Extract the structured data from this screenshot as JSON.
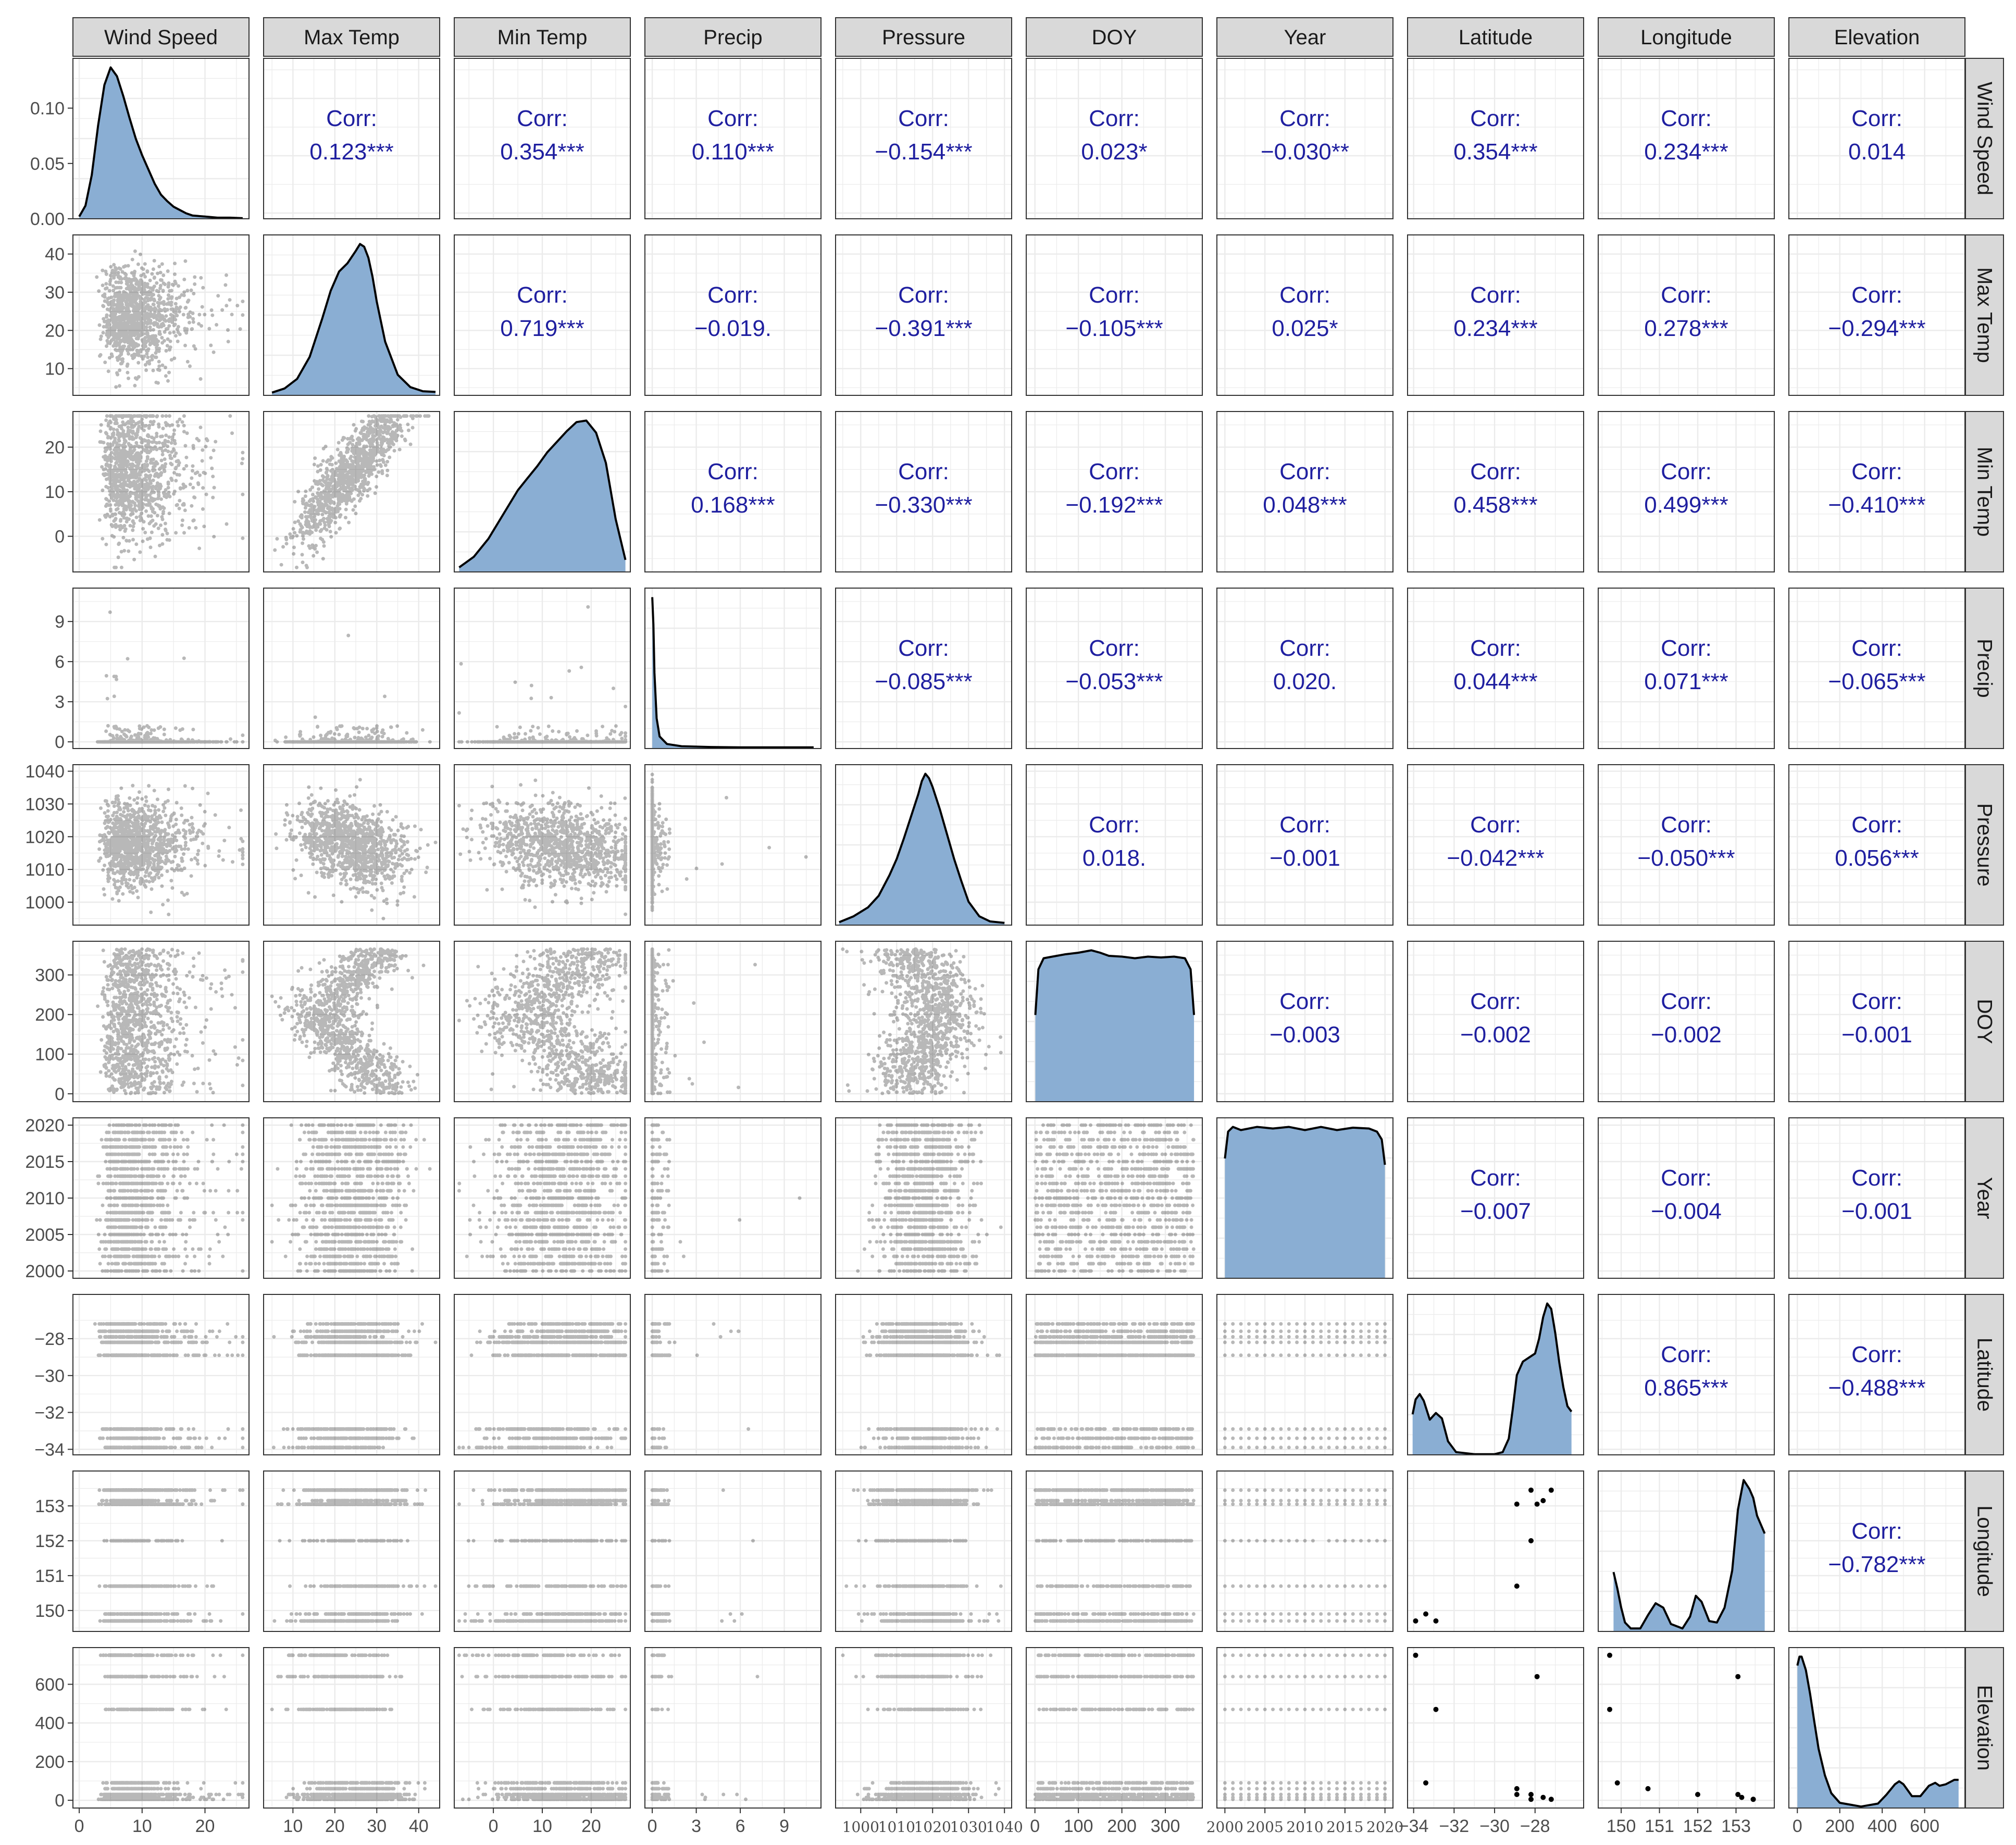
{
  "chart_data": {
    "type": "scatter",
    "layout": "pairs-matrix",
    "variables": [
      "Wind Speed",
      "Max Temp",
      "Min Temp",
      "Precip",
      "Pressure",
      "DOY",
      "Year",
      "Latitude",
      "Longitude",
      "Elevation"
    ],
    "grid": true,
    "colors": {
      "density_fill": "#8aaed3",
      "density_line": "#000000",
      "points": "#000000",
      "correlation_text": "#1f1fa0",
      "strip_fill": "#d9d9d9",
      "gridline": "#ebebeb"
    },
    "axes": [
      {
        "name": "Wind Speed",
        "range": [
          -1,
          27
        ],
        "ticks": [
          "0",
          "10",
          "20"
        ],
        "tick_values": [
          0,
          10,
          20
        ],
        "density_range": [
          0,
          0.145
        ],
        "density_ticks": [
          "0.00",
          "0.05",
          "0.10"
        ],
        "density_tick_values": [
          0,
          0.05,
          0.1
        ]
      },
      {
        "name": "Max Temp",
        "range": [
          3,
          45
        ],
        "ticks": [
          "10",
          "20",
          "30",
          "40"
        ],
        "tick_values": [
          10,
          20,
          30,
          40
        ]
      },
      {
        "name": "Min Temp",
        "range": [
          -8,
          28
        ],
        "ticks": [
          "0",
          "10",
          "20"
        ],
        "tick_values": [
          0,
          10,
          20
        ]
      },
      {
        "name": "Precip",
        "range": [
          -0.5,
          11.5
        ],
        "ticks": [
          "0",
          "3",
          "6",
          "9"
        ],
        "tick_values": [
          0,
          3,
          6,
          9
        ]
      },
      {
        "name": "Pressure",
        "range": [
          993,
          1042
        ],
        "ticks": [
          "1000",
          "1010",
          "1020",
          "1030",
          "1040"
        ],
        "tick_values": [
          1000,
          1010,
          1020,
          1030,
          1040
        ]
      },
      {
        "name": "DOY",
        "range": [
          -20,
          385
        ],
        "ticks": [
          "0",
          "100",
          "200",
          "300"
        ],
        "tick_values": [
          0,
          100,
          200,
          300
        ]
      },
      {
        "name": "Year",
        "range": [
          1999,
          2021
        ],
        "ticks": [
          "2000",
          "2005",
          "2010",
          "2015",
          "2020"
        ],
        "tick_values": [
          2000,
          2005,
          2010,
          2015,
          2020
        ]
      },
      {
        "name": "Latitude",
        "range": [
          -34.3,
          -25.6
        ],
        "ticks": [
          "-34",
          "-32",
          "-30",
          "-28"
        ],
        "tick_values": [
          -34,
          -32,
          -30,
          -28
        ]
      },
      {
        "name": "Longitude",
        "range": [
          149.4,
          154.0
        ],
        "ticks": [
          "150",
          "151",
          "152",
          "153"
        ],
        "tick_values": [
          150,
          151,
          152,
          153
        ]
      },
      {
        "name": "Elevation",
        "range": [
          -40,
          790
        ],
        "ticks": [
          "0",
          "200",
          "400",
          "600"
        ],
        "tick_values": [
          0,
          200,
          400,
          600
        ]
      }
    ],
    "correlation_label": "Corr:",
    "correlations": [
      {
        "row": "Wind Speed",
        "col": "Max Temp",
        "value": "0.123***"
      },
      {
        "row": "Wind Speed",
        "col": "Min Temp",
        "value": "0.354***"
      },
      {
        "row": "Wind Speed",
        "col": "Precip",
        "value": "0.110***"
      },
      {
        "row": "Wind Speed",
        "col": "Pressure",
        "value": "−0.154***"
      },
      {
        "row": "Wind Speed",
        "col": "DOY",
        "value": "0.023*"
      },
      {
        "row": "Wind Speed",
        "col": "Year",
        "value": "−0.030**"
      },
      {
        "row": "Wind Speed",
        "col": "Latitude",
        "value": "0.354***"
      },
      {
        "row": "Wind Speed",
        "col": "Longitude",
        "value": "0.234***"
      },
      {
        "row": "Wind Speed",
        "col": "Elevation",
        "value": "0.014"
      },
      {
        "row": "Max Temp",
        "col": "Min Temp",
        "value": "0.719***"
      },
      {
        "row": "Max Temp",
        "col": "Precip",
        "value": "−0.019."
      },
      {
        "row": "Max Temp",
        "col": "Pressure",
        "value": "−0.391***"
      },
      {
        "row": "Max Temp",
        "col": "DOY",
        "value": "−0.105***"
      },
      {
        "row": "Max Temp",
        "col": "Year",
        "value": "0.025*"
      },
      {
        "row": "Max Temp",
        "col": "Latitude",
        "value": "0.234***"
      },
      {
        "row": "Max Temp",
        "col": "Longitude",
        "value": "0.278***"
      },
      {
        "row": "Max Temp",
        "col": "Elevation",
        "value": "−0.294***"
      },
      {
        "row": "Min Temp",
        "col": "Precip",
        "value": "0.168***"
      },
      {
        "row": "Min Temp",
        "col": "Pressure",
        "value": "−0.330***"
      },
      {
        "row": "Min Temp",
        "col": "DOY",
        "value": "−0.192***"
      },
      {
        "row": "Min Temp",
        "col": "Year",
        "value": "0.048***"
      },
      {
        "row": "Min Temp",
        "col": "Latitude",
        "value": "0.458***"
      },
      {
        "row": "Min Temp",
        "col": "Longitude",
        "value": "0.499***"
      },
      {
        "row": "Min Temp",
        "col": "Elevation",
        "value": "−0.410***"
      },
      {
        "row": "Precip",
        "col": "Pressure",
        "value": "−0.085***"
      },
      {
        "row": "Precip",
        "col": "DOY",
        "value": "−0.053***"
      },
      {
        "row": "Precip",
        "col": "Year",
        "value": "0.020."
      },
      {
        "row": "Precip",
        "col": "Latitude",
        "value": "0.044***"
      },
      {
        "row": "Precip",
        "col": "Longitude",
        "value": "0.071***"
      },
      {
        "row": "Precip",
        "col": "Elevation",
        "value": "−0.065***"
      },
      {
        "row": "Pressure",
        "col": "DOY",
        "value": "0.018."
      },
      {
        "row": "Pressure",
        "col": "Year",
        "value": "−0.001"
      },
      {
        "row": "Pressure",
        "col": "Latitude",
        "value": "−0.042***"
      },
      {
        "row": "Pressure",
        "col": "Longitude",
        "value": "−0.050***"
      },
      {
        "row": "Pressure",
        "col": "Elevation",
        "value": "0.056***"
      },
      {
        "row": "DOY",
        "col": "Year",
        "value": "−0.003"
      },
      {
        "row": "DOY",
        "col": "Latitude",
        "value": "−0.002"
      },
      {
        "row": "DOY",
        "col": "Longitude",
        "value": "−0.002"
      },
      {
        "row": "DOY",
        "col": "Elevation",
        "value": "−0.001"
      },
      {
        "row": "Year",
        "col": "Latitude",
        "value": "−0.007"
      },
      {
        "row": "Year",
        "col": "Longitude",
        "value": "−0.004"
      },
      {
        "row": "Year",
        "col": "Elevation",
        "value": "−0.001"
      },
      {
        "row": "Latitude",
        "col": "Longitude",
        "value": "0.865***"
      },
      {
        "row": "Latitude",
        "col": "Elevation",
        "value": "−0.488***"
      },
      {
        "row": "Longitude",
        "col": "Elevation",
        "value": "−0.782***"
      }
    ],
    "density_curves": {
      "Wind Speed": {
        "x": [
          0,
          1,
          2,
          3,
          4,
          5,
          6,
          7,
          8,
          9,
          10,
          11,
          12,
          13,
          14,
          15,
          16,
          17,
          18,
          20,
          22,
          24,
          26
        ],
        "y": [
          0.002,
          0.012,
          0.04,
          0.085,
          0.122,
          0.138,
          0.13,
          0.112,
          0.092,
          0.073,
          0.058,
          0.045,
          0.032,
          0.022,
          0.016,
          0.011,
          0.008,
          0.005,
          0.003,
          0.002,
          0.001,
          0.001,
          0.0005
        ]
      },
      "Max Temp": {
        "x": [
          5,
          8,
          11,
          14,
          17,
          19,
          21,
          23,
          25,
          26,
          27,
          28,
          29,
          30,
          32,
          35,
          38,
          41,
          44
        ],
        "y": [
          0.2,
          0.5,
          1.2,
          2.8,
          5.6,
          7.6,
          9.0,
          9.6,
          10.5,
          11.0,
          10.8,
          10.0,
          8.6,
          6.8,
          3.9,
          1.5,
          0.6,
          0.3,
          0.25
        ]
      },
      "Min Temp": {
        "x": [
          -7,
          -4,
          -1,
          2,
          5,
          7,
          9,
          11,
          13,
          15,
          17,
          19,
          21,
          23,
          25,
          27
        ],
        "y": [
          0.3,
          1.0,
          2.2,
          3.8,
          5.4,
          6.2,
          7.0,
          7.9,
          8.6,
          9.3,
          9.9,
          10.0,
          9.2,
          7.2,
          3.5,
          0.8
        ]
      },
      "Precip": {
        "x": [
          0,
          0.08,
          0.15,
          0.3,
          0.5,
          1,
          2,
          4,
          6,
          8,
          11
        ],
        "y": [
          10,
          8.2,
          5.0,
          2.0,
          0.8,
          0.3,
          0.15,
          0.1,
          0.08,
          0.08,
          0.08
        ]
      },
      "Pressure": {
        "x": [
          994,
          998,
          1002,
          1005,
          1008,
          1010,
          1012,
          1014,
          1016,
          1017,
          1018,
          1019,
          1020,
          1022,
          1024,
          1026,
          1028,
          1030,
          1033,
          1036,
          1040
        ],
        "y": [
          0.2,
          0.6,
          1.2,
          2.0,
          3.4,
          4.5,
          5.9,
          7.4,
          8.9,
          9.8,
          10.3,
          10.0,
          9.4,
          7.9,
          6.2,
          4.5,
          3.0,
          1.6,
          0.6,
          0.25,
          0.15
        ]
      },
      "DOY": {
        "x": [
          1,
          8,
          20,
          40,
          70,
          100,
          130,
          150,
          170,
          200,
          230,
          260,
          290,
          320,
          345,
          358,
          366
        ],
        "y": [
          5.5,
          8.4,
          9.1,
          9.2,
          9.35,
          9.45,
          9.6,
          9.45,
          9.25,
          9.2,
          9.1,
          9.2,
          9.15,
          9.2,
          9.1,
          8.4,
          5.5
        ]
      },
      "Year": {
        "x": [
          2000,
          2000.4,
          2001,
          2002,
          2004,
          2006,
          2008,
          2010,
          2012,
          2014,
          2016,
          2018,
          2019,
          2019.6,
          2020
        ],
        "y": [
          7.6,
          9.3,
          9.6,
          9.4,
          9.6,
          9.5,
          9.6,
          9.4,
          9.6,
          9.4,
          9.55,
          9.5,
          9.3,
          8.8,
          7.2
        ]
      },
      "Latitude": {
        "x": [
          -34.05,
          -33.9,
          -33.7,
          -33.5,
          -33.2,
          -32.9,
          -32.6,
          -32.3,
          -31.9,
          -31,
          -30,
          -29.6,
          -29.3,
          -29.1,
          -28.9,
          -28.6,
          -28.3,
          -28.0,
          -27.8,
          -27.6,
          -27.4,
          -27.2,
          -27.0,
          -26.8,
          -26.6,
          -26.4,
          -26.2
        ],
        "y": [
          3.0,
          4.1,
          4.5,
          4.0,
          2.6,
          3.1,
          2.7,
          1.0,
          0.2,
          0.05,
          0.05,
          0.2,
          1.2,
          3.4,
          5.9,
          6.9,
          7.2,
          7.5,
          8.6,
          10.2,
          11.2,
          10.8,
          9.0,
          6.8,
          5.0,
          3.6,
          3.2
        ]
      },
      "Longitude": {
        "x": [
          149.8,
          149.9,
          150.0,
          150.1,
          150.25,
          150.5,
          150.7,
          150.9,
          151.1,
          151.3,
          151.6,
          151.8,
          151.95,
          152.1,
          152.3,
          152.5,
          152.7,
          152.9,
          153.05,
          153.2,
          153.35,
          153.45,
          153.55,
          153.75
        ],
        "y": [
          4.0,
          2.9,
          1.6,
          0.6,
          0.2,
          0.2,
          1.1,
          1.9,
          1.6,
          0.5,
          0.2,
          1.0,
          2.4,
          2.0,
          0.7,
          0.6,
          1.6,
          4.1,
          8.2,
          10.2,
          9.6,
          9.0,
          7.8,
          6.6
        ]
      },
      "Elevation": {
        "x": [
          0,
          10,
          20,
          40,
          60,
          80,
          100,
          130,
          160,
          200,
          300,
          380,
          420,
          460,
          480,
          500,
          540,
          580,
          620,
          650,
          670,
          700,
          740,
          760
        ],
        "y": [
          9.6,
          10.2,
          10.2,
          9.3,
          7.7,
          5.8,
          4.0,
          2.2,
          1.0,
          0.35,
          0.1,
          0.3,
          0.9,
          1.6,
          1.8,
          1.6,
          0.8,
          0.8,
          1.5,
          1.7,
          1.5,
          1.6,
          1.9,
          1.9
        ]
      }
    },
    "distinct_levels": {
      "Latitude": [
        -33.9,
        -33.4,
        -32.9,
        -28.9,
        -28.2,
        -27.9,
        -27.6,
        -27.2
      ],
      "Longitude": [
        149.7,
        150.7,
        152.0,
        153.05,
        153.15,
        153.45
      ],
      "Elevation": [
        5,
        15,
        30,
        60,
        90,
        470,
        640,
        750
      ],
      "Year": [
        2000,
        2001,
        2002,
        2003,
        2004,
        2005,
        2006,
        2007,
        2008,
        2009,
        2010,
        2011,
        2012,
        2013,
        2014,
        2015,
        2016,
        2017,
        2018,
        2019,
        2020
      ]
    },
    "stations": [
      {
        "lat": -33.9,
        "lon": 149.7,
        "elev": 750
      },
      {
        "lat": -32.9,
        "lon": 149.7,
        "elev": 470
      },
      {
        "lat": -33.4,
        "lon": 149.9,
        "elev": 90
      },
      {
        "lat": -28.2,
        "lon": 153.45,
        "elev": 5
      },
      {
        "lat": -27.2,
        "lon": 153.45,
        "elev": 5
      },
      {
        "lat": -27.6,
        "lon": 153.15,
        "elev": 15
      },
      {
        "lat": -27.9,
        "lon": 153.05,
        "elev": 640
      },
      {
        "lat": -28.9,
        "lon": 153.05,
        "elev": 30
      },
      {
        "lat": -28.2,
        "lon": 152.0,
        "elev": 30
      },
      {
        "lat": -28.9,
        "lon": 150.7,
        "elev": 60
      }
    ]
  }
}
